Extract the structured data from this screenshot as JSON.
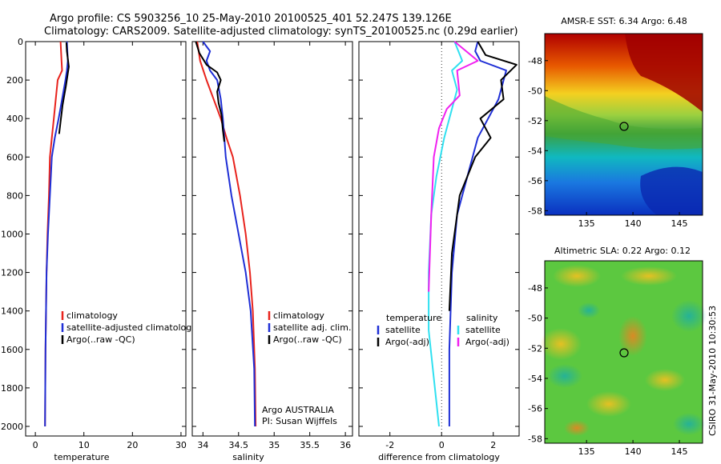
{
  "header": {
    "line1": "Argo profile: CS 5903256_10 25-May-2010 20100525_401 52.247S 139.126E",
    "line2": "Climatology: CARS2009. Satellite-adjusted climatology: synTS_20100525.nc (0.29d earlier)"
  },
  "side_label": "CSIRO 31-May-2010 10:30:53",
  "colors": {
    "climatology": "#e8231d",
    "satellite": "#1f2fd6",
    "argo": "#000000",
    "sal_satellite": "#2fe0f0",
    "sal_argo": "#f020f0"
  },
  "chart_data": [
    {
      "type": "line",
      "xlabel": "temperature",
      "ylabel": "",
      "xlim": [
        -2,
        31
      ],
      "ylim": [
        2050,
        0
      ],
      "xticks": [
        0,
        10,
        20,
        30
      ],
      "yticks": [
        0,
        200,
        400,
        600,
        800,
        1000,
        1200,
        1400,
        1600,
        1800,
        2000
      ],
      "legend": [
        "climatology",
        "satellite-adjusted climatology",
        "Argo(..raw -QC)"
      ],
      "series": [
        {
          "name": "climatology",
          "color": "#e8231d",
          "x": [
            5.2,
            5.3,
            5.4,
            5.5,
            4.6,
            4.2,
            3.8,
            3.4,
            3.0,
            2.8,
            2.5,
            2.3,
            2.1,
            2.0
          ],
          "y": [
            0,
            50,
            100,
            150,
            200,
            300,
            400,
            500,
            600,
            800,
            1000,
            1200,
            1600,
            2000
          ]
        },
        {
          "name": "satellite-adjusted climatology",
          "color": "#1f2fd6",
          "x": [
            6.5,
            6.6,
            6.7,
            6.5,
            6.2,
            5.5,
            4.8,
            4.0,
            3.4,
            3.0,
            2.6,
            2.3,
            2.1,
            2.0
          ],
          "y": [
            0,
            50,
            100,
            150,
            200,
            300,
            400,
            500,
            600,
            800,
            1000,
            1200,
            1600,
            2000
          ]
        },
        {
          "name": "Argo(..raw -QC)",
          "color": "#000000",
          "x": [
            6.4,
            6.5,
            6.9,
            6.6,
            6.3,
            5.6,
            4.9
          ],
          "y": [
            5,
            50,
            130,
            180,
            230,
            330,
            480
          ]
        }
      ]
    },
    {
      "type": "line",
      "xlabel": "salinity",
      "xlim": [
        33.85,
        36.1
      ],
      "ylim": [
        2050,
        0
      ],
      "xticks": [
        34,
        34.5,
        35,
        35.5,
        36
      ],
      "legend": [
        "climatology",
        "satellite adj. clim.",
        "Argo(..raw -QC)"
      ],
      "annotations": [
        "Argo AUSTRALIA",
        "PI: Susan Wijffels"
      ],
      "series": [
        {
          "name": "climatology",
          "color": "#e8231d",
          "x": [
            33.92,
            33.96,
            34.05,
            34.15,
            34.25,
            34.33,
            34.42,
            34.52,
            34.6,
            34.66,
            34.7,
            34.73,
            34.74
          ],
          "y": [
            0,
            100,
            200,
            300,
            400,
            500,
            600,
            800,
            1000,
            1200,
            1400,
            1700,
            2000
          ]
        },
        {
          "name": "satellite adj. clim.",
          "color": "#1f2fd6",
          "x": [
            34.0,
            34.1,
            34.05,
            34.1,
            34.2,
            34.25,
            34.28,
            34.32,
            34.4,
            34.5,
            34.6,
            34.67,
            34.72,
            34.73
          ],
          "y": [
            0,
            50,
            100,
            150,
            200,
            300,
            400,
            600,
            800,
            1000,
            1200,
            1400,
            1700,
            2000
          ]
        },
        {
          "name": "Argo(..raw -QC)",
          "color": "#000000",
          "x": [
            33.9,
            33.95,
            34.05,
            34.2,
            34.25,
            34.2,
            34.22,
            34.26,
            34.28,
            34.3
          ],
          "y": [
            0,
            60,
            120,
            160,
            200,
            260,
            320,
            380,
            460,
            520
          ]
        }
      ]
    },
    {
      "type": "line",
      "xlabel": "difference from climatology",
      "xlim": [
        -3.2,
        3.0
      ],
      "ylim": [
        2050,
        0
      ],
      "xticks": [
        -2,
        0,
        2
      ],
      "legend_groups": [
        {
          "title": "temperature",
          "items": [
            "satellite",
            "Argo(-adj)"
          ]
        },
        {
          "title": "salinity",
          "items": [
            "satellite",
            "Argo(-adj)"
          ]
        }
      ],
      "series": [
        {
          "name": "satellite",
          "color": "#1f2fd6",
          "x": [
            1.4,
            1.3,
            1.5,
            2.5,
            2.2,
            1.8,
            1.4,
            1.0,
            0.6,
            0.4,
            0.3,
            0.3
          ],
          "y": [
            0,
            50,
            100,
            150,
            300,
            400,
            500,
            700,
            900,
            1200,
            1600,
            2000
          ]
        },
        {
          "name": "Argo(-adj)",
          "color": "#000000",
          "x": [
            1.4,
            1.7,
            2.9,
            2.3,
            2.4,
            1.5,
            1.9,
            1.3,
            0.7,
            0.4,
            0.3
          ],
          "y": [
            0,
            70,
            120,
            200,
            300,
            400,
            500,
            600,
            800,
            1100,
            1400
          ]
        },
        {
          "name": "satellite",
          "color": "#2fe0f0",
          "x": [
            0.5,
            0.8,
            0.4,
            0.6,
            0.3,
            0.1,
            -0.2,
            -0.4,
            -0.5,
            -0.5,
            -0.1
          ],
          "y": [
            0,
            100,
            150,
            250,
            400,
            500,
            700,
            900,
            1200,
            1500,
            2000
          ]
        },
        {
          "name": "Argo(-adj)",
          "color": "#f020f0",
          "x": [
            0.5,
            1.4,
            0.6,
            0.7,
            0.2,
            -0.1,
            -0.3,
            -0.4,
            -0.5
          ],
          "y": [
            0,
            100,
            150,
            280,
            350,
            450,
            600,
            900,
            1300
          ]
        }
      ]
    },
    {
      "type": "heatmap",
      "title": "AMSR-E SST: 6.34 Argo: 6.48",
      "xticks": [
        135,
        140,
        145
      ],
      "yticks": [
        -48,
        -50,
        -52,
        -54,
        -56,
        -58
      ],
      "xlim": [
        130.5,
        147.5
      ],
      "ylim": [
        -58.3,
        -46.2
      ],
      "marker": {
        "lon": 139.126,
        "lat": -52.247
      }
    },
    {
      "type": "heatmap",
      "title": "Altimetric SLA: 0.22 Argo: 0.12",
      "xticks": [
        135,
        140,
        145
      ],
      "yticks": [
        -48,
        -50,
        -52,
        -54,
        -56,
        -58
      ],
      "xlim": [
        130.5,
        147.5
      ],
      "ylim": [
        -58.3,
        -46.2
      ],
      "marker": {
        "lon": 139.126,
        "lat": -52.247
      }
    }
  ]
}
